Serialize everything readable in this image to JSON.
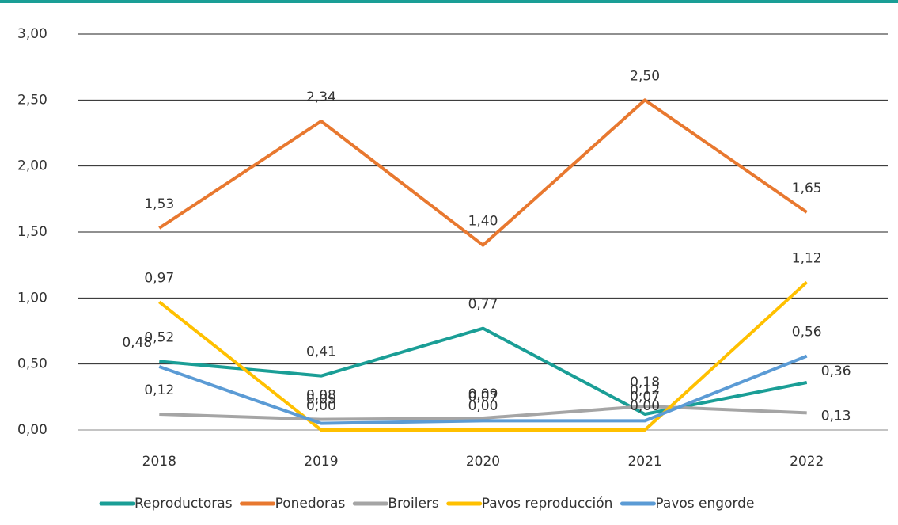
{
  "chart_data": {
    "type": "line",
    "categories": [
      "2018",
      "2019",
      "2020",
      "2021",
      "2022"
    ],
    "series": [
      {
        "name": "Reproductoras",
        "color": "#1a9e96",
        "values": [
          0.52,
          0.41,
          0.77,
          0.12,
          0.36
        ],
        "value_labels": [
          "0,52",
          "0,41",
          "0,77",
          "0,12",
          "0,36"
        ]
      },
      {
        "name": "Ponedoras",
        "color": "#e8782f",
        "values": [
          1.53,
          2.34,
          1.4,
          2.5,
          1.65
        ],
        "value_labels": [
          "1,53",
          "2,34",
          "1,40",
          "2,50",
          "1,65"
        ]
      },
      {
        "name": "Broilers",
        "color": "#a5a5a5",
        "values": [
          0.12,
          0.08,
          0.09,
          0.18,
          0.13
        ],
        "value_labels": [
          "0,12",
          "0,08",
          "0,09",
          "0,18",
          "0,13"
        ]
      },
      {
        "name": "Pavos reproducción",
        "color": "#ffc000",
        "values": [
          0.97,
          0.0,
          0.0,
          0.0,
          1.12
        ],
        "value_labels": [
          "0,97",
          "0,00",
          "0,00",
          "0,00",
          "1,12"
        ]
      },
      {
        "name": "Pavos engorde",
        "color": "#5b9bd5",
        "values": [
          0.48,
          0.05,
          0.07,
          0.07,
          0.56
        ],
        "value_labels": [
          "0,48",
          "0,05",
          "0,07",
          "0,07",
          "0,56"
        ]
      }
    ],
    "ylim": [
      0,
      3
    ],
    "yticks": [
      {
        "value": 0,
        "label": "0,00"
      },
      {
        "value": 0.5,
        "label": "0,50"
      },
      {
        "value": 1,
        "label": "1,00"
      },
      {
        "value": 1.5,
        "label": "1,50"
      },
      {
        "value": 2,
        "label": "2,00"
      },
      {
        "value": 2.5,
        "label": "2,50"
      },
      {
        "value": 3,
        "label": "3,00"
      }
    ],
    "grid": true,
    "legend": "bottom"
  }
}
